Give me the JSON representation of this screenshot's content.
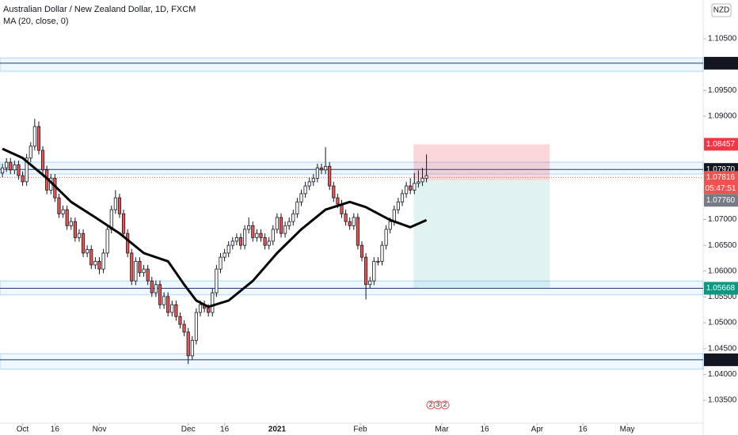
{
  "chart_data": {
    "type": "candlestick",
    "title": "Australian Dollar / New Zealand Dollar, 1D, FXCM",
    "indicator": "MA (20, close, 0)",
    "currency": "NZD",
    "xlim": [
      -0.6,
      173.5
    ],
    "xticks": [
      {
        "value": 5,
        "label": "Oct"
      },
      {
        "value": 13,
        "label": "16"
      },
      {
        "value": 24,
        "label": "Nov"
      },
      {
        "value": 46,
        "label": "Dec"
      },
      {
        "value": 55,
        "label": "16"
      },
      {
        "value": 68,
        "label": "2021"
      },
      {
        "value": 88.6,
        "label": "Feb"
      },
      {
        "value": 108.8,
        "label": "Mar"
      },
      {
        "value": 119.4,
        "label": "16"
      },
      {
        "value": 132.4,
        "label": "Apr"
      },
      {
        "value": 143.7,
        "label": "16"
      },
      {
        "value": 154.7,
        "label": "May"
      }
    ],
    "ylim": [
      1.03056,
      1.11251
    ],
    "yticks": [
      {
        "value": 1.105,
        "label": "1.10500"
      },
      {
        "value": 1.095,
        "label": "1.09500"
      },
      {
        "value": 1.09,
        "label": "1.09000"
      },
      {
        "value": 1.07,
        "label": "1.07000"
      },
      {
        "value": 1.065,
        "label": "1.06500"
      },
      {
        "value": 1.06,
        "label": "1.06000"
      },
      {
        "value": 1.055,
        "label": "1.05500"
      },
      {
        "value": 1.05,
        "label": "1.05000"
      },
      {
        "value": 1.045,
        "label": "1.04500"
      },
      {
        "value": 1.04,
        "label": "1.04000"
      },
      {
        "value": 1.035,
        "label": "1.03500"
      }
    ],
    "open": [
      1.079,
      1.08,
      1.0811,
      1.0796,
      1.0806,
      1.0785,
      1.0773,
      1.0819,
      1.0842,
      1.088,
      1.0834,
      1.0796,
      1.0757,
      1.078,
      1.0742,
      1.0711,
      1.0719,
      1.0688,
      1.0696,
      1.0665,
      1.0673,
      1.0635,
      1.0642,
      1.0612,
      1.0619,
      1.0604,
      1.0635,
      1.0681,
      1.0719,
      1.0742,
      1.0711,
      1.0673,
      1.0635,
      1.0581,
      1.0619,
      1.0597,
      1.0604,
      1.0581,
      1.0558,
      1.0574,
      1.0535,
      1.0551,
      1.052,
      1.0535,
      1.0512,
      1.0497,
      1.0482,
      1.0436,
      1.0466,
      1.052,
      1.0535,
      1.0528,
      1.052,
      1.0558,
      1.0604,
      1.0627,
      1.0635,
      1.065,
      1.0658,
      1.0665,
      1.065,
      1.0681,
      1.0688,
      1.0665,
      1.0673,
      1.0665,
      1.065,
      1.0658,
      1.0681,
      1.0704,
      1.0673,
      1.0688,
      1.0696,
      1.0711,
      1.0734,
      1.075,
      1.0765,
      1.0773,
      1.078,
      1.08,
      1.0796,
      1.0803,
      1.0765,
      1.0742,
      1.073,
      1.0711,
      1.0696,
      1.0688,
      1.0704,
      1.065,
      1.0627,
      1.0574,
      1.0581,
      1.0619,
      1.0619,
      1.065,
      1.0681,
      1.0696,
      1.0719,
      1.0734,
      1.075,
      1.0765,
      1.0757,
      1.077,
      1.0773,
      1.078
    ],
    "high": [
      1.0808,
      1.0819,
      1.0819,
      1.0814,
      1.0814,
      1.0793,
      1.0827,
      1.085,
      1.0895,
      1.089,
      1.0842,
      1.0804,
      1.0788,
      1.0788,
      1.075,
      1.0727,
      1.0727,
      1.0704,
      1.0704,
      1.0681,
      1.0681,
      1.065,
      1.065,
      1.0627,
      1.0627,
      1.0643,
      1.0689,
      1.0727,
      1.0757,
      1.075,
      1.0719,
      1.0681,
      1.0643,
      1.0627,
      1.0627,
      1.0612,
      1.0612,
      1.0589,
      1.0582,
      1.0582,
      1.0559,
      1.0559,
      1.0543,
      1.0543,
      1.052,
      1.0505,
      1.049,
      1.0474,
      1.0528,
      1.0543,
      1.0543,
      1.0536,
      1.0566,
      1.0612,
      1.0635,
      1.0643,
      1.0658,
      1.0666,
      1.0673,
      1.0673,
      1.0689,
      1.0704,
      1.0696,
      1.0681,
      1.0681,
      1.0673,
      1.0666,
      1.0689,
      1.0712,
      1.0712,
      1.0696,
      1.0704,
      1.0719,
      1.0742,
      1.0758,
      1.0773,
      1.0781,
      1.0788,
      1.0808,
      1.0808,
      1.084,
      1.0811,
      1.0773,
      1.075,
      1.0738,
      1.0719,
      1.0704,
      1.0712,
      1.0712,
      1.0658,
      1.0635,
      1.0589,
      1.0627,
      1.0627,
      1.0658,
      1.0689,
      1.0704,
      1.0727,
      1.0742,
      1.0758,
      1.0773,
      1.078,
      1.079,
      1.0795,
      1.08,
      1.0826
    ],
    "low": [
      1.0782,
      1.0792,
      1.0788,
      1.0788,
      1.0777,
      1.0765,
      1.0765,
      1.0811,
      1.0834,
      1.0826,
      1.0788,
      1.0749,
      1.0749,
      1.0734,
      1.0703,
      1.0703,
      1.068,
      1.068,
      1.0657,
      1.0657,
      1.0627,
      1.0627,
      1.0604,
      1.0604,
      1.0594,
      1.0596,
      1.0627,
      1.0673,
      1.0711,
      1.0703,
      1.0665,
      1.0627,
      1.0573,
      1.0573,
      1.0589,
      1.0589,
      1.0573,
      1.055,
      1.055,
      1.0527,
      1.0527,
      1.0512,
      1.0512,
      1.0504,
      1.0489,
      1.0474,
      1.042,
      1.0428,
      1.0458,
      1.0512,
      1.052,
      1.0512,
      1.0512,
      1.055,
      1.0596,
      1.0619,
      1.0627,
      1.0642,
      1.065,
      1.0642,
      1.0642,
      1.0673,
      1.0657,
      1.0657,
      1.0657,
      1.0642,
      1.0642,
      1.065,
      1.0673,
      1.0665,
      1.0665,
      1.068,
      1.0688,
      1.0703,
      1.0726,
      1.0742,
      1.0757,
      1.0765,
      1.0772,
      1.0788,
      1.0788,
      1.0757,
      1.0734,
      1.0722,
      1.0703,
      1.0688,
      1.068,
      1.068,
      1.0642,
      1.0619,
      1.0545,
      1.0566,
      1.0573,
      1.0611,
      1.0611,
      1.0642,
      1.0673,
      1.0688,
      1.0711,
      1.0726,
      1.0742,
      1.0749,
      1.0749,
      1.0762,
      1.0765,
      1.0772
    ],
    "close": [
      1.08,
      1.0811,
      1.0796,
      1.0806,
      1.0785,
      1.0773,
      1.0819,
      1.0842,
      1.088,
      1.0834,
      1.0796,
      1.0757,
      1.078,
      1.0742,
      1.0711,
      1.0719,
      1.0688,
      1.0696,
      1.0665,
      1.0673,
      1.0635,
      1.0642,
      1.0612,
      1.0619,
      1.0604,
      1.0635,
      1.0681,
      1.0719,
      1.0742,
      1.0711,
      1.0673,
      1.0635,
      1.0581,
      1.0619,
      1.0597,
      1.0604,
      1.0581,
      1.0558,
      1.0574,
      1.0535,
      1.0551,
      1.052,
      1.0535,
      1.0512,
      1.0497,
      1.0482,
      1.0436,
      1.0466,
      1.052,
      1.0535,
      1.0528,
      1.052,
      1.0558,
      1.0604,
      1.0627,
      1.0635,
      1.065,
      1.0658,
      1.0665,
      1.065,
      1.0681,
      1.0688,
      1.0665,
      1.0673,
      1.0665,
      1.065,
      1.0658,
      1.0681,
      1.0704,
      1.0673,
      1.0688,
      1.0696,
      1.0711,
      1.0734,
      1.075,
      1.0765,
      1.0773,
      1.078,
      1.08,
      1.0796,
      1.0803,
      1.0765,
      1.0742,
      1.073,
      1.0711,
      1.0696,
      1.0688,
      1.0704,
      1.065,
      1.0627,
      1.0574,
      1.0581,
      1.0619,
      1.0619,
      1.065,
      1.0681,
      1.0696,
      1.0719,
      1.0734,
      1.075,
      1.0765,
      1.0757,
      1.077,
      1.0773,
      1.078,
      1.0785
    ],
    "up_color": "#ffffff",
    "down_color": "#ef5350",
    "ma": {
      "color": "#000000",
      "x": [
        0,
        5,
        11,
        17,
        23,
        29,
        35,
        41,
        45,
        48,
        51,
        56,
        62,
        68,
        74,
        80,
        86,
        90,
        96,
        101,
        105
      ],
      "values": [
        1.0837,
        1.0819,
        1.078,
        1.0734,
        1.0704,
        1.0673,
        1.0635,
        1.0619,
        1.0574,
        1.0543,
        1.0531,
        1.0543,
        1.0581,
        1.0635,
        1.0681,
        1.0719,
        1.0734,
        1.0724,
        1.0699,
        1.0685,
        1.0699
      ]
    },
    "levels": [
      {
        "value": 1.10027,
        "low": 1.0987,
        "high": 1.1013
      },
      {
        "value": 1.0797,
        "label": "1.07970",
        "low": 1.0788,
        "high": 1.0811
      },
      {
        "value": 1.05668,
        "low": 1.0554,
        "high": 1.0581
      },
      {
        "value": 1.04283,
        "low": 1.041,
        "high": 1.044
      }
    ],
    "last_price": 1.07816,
    "countdown": "05:47:51",
    "position": {
      "x_start": 101.8,
      "x_end": 135.5,
      "entry": {
        "value": 1.0776,
        "label": "1.07760"
      },
      "stop": 1.08457,
      "target": 1.05668
    },
    "event_badges": [
      "2",
      "3",
      "2"
    ]
  }
}
